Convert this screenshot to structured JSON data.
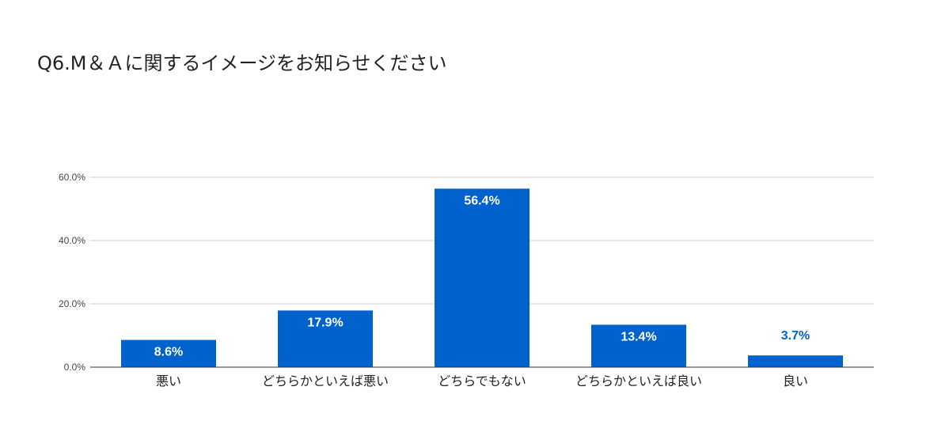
{
  "chart_data": {
    "type": "bar",
    "title": "Q6.M＆Ａに関するイメージをお知らせください",
    "categories": [
      "悪い",
      "どちらかといえば悪い",
      "どちらでもない",
      "どちらかといえば良い",
      "良い"
    ],
    "values": [
      8.6,
      17.9,
      56.4,
      13.4,
      3.7
    ],
    "data_labels": [
      "8.6%",
      "17.9%",
      "56.4%",
      "13.4%",
      "3.7%"
    ],
    "y_ticks": [
      0,
      20,
      40,
      60
    ],
    "y_tick_labels": [
      "0.0%",
      "20.0%",
      "40.0%",
      "60.0%"
    ],
    "ylim": [
      0,
      60
    ],
    "xlabel": "",
    "ylabel": "",
    "grid": true,
    "legend": "none",
    "bar_color": "#0062cc",
    "label_inside_color": "#ffffff",
    "label_outside_color": "#0062cc"
  }
}
